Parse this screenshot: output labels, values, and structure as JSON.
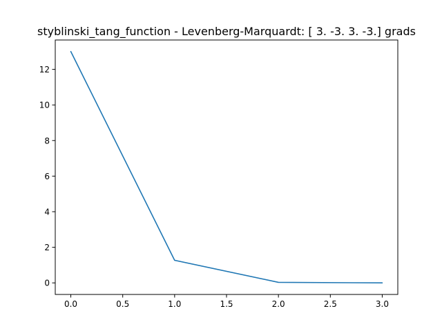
{
  "chart_data": {
    "type": "line",
    "title": "styblinski_tang_function - Levenberg-Marquardt: [ 3. -3.  3. -3.] grads",
    "xlabel": "",
    "ylabel": "",
    "x": [
      0,
      1,
      2,
      3
    ],
    "series": [
      {
        "values": [
          13.0,
          1.27,
          0.03,
          0.0
        ],
        "color": "#1f77b4"
      }
    ],
    "xlim": [
      -0.15,
      3.15
    ],
    "ylim": [
      -0.65,
      13.65
    ],
    "xticks": [
      0.0,
      0.5,
      1.0,
      1.5,
      2.0,
      2.5,
      3.0
    ],
    "xtick_labels": [
      "0.0",
      "0.5",
      "1.0",
      "1.5",
      "2.0",
      "2.5",
      "3.0"
    ],
    "yticks": [
      0,
      2,
      4,
      6,
      8,
      10,
      12
    ],
    "ytick_labels": [
      "0",
      "2",
      "4",
      "6",
      "8",
      "10",
      "12"
    ],
    "grid": false
  }
}
